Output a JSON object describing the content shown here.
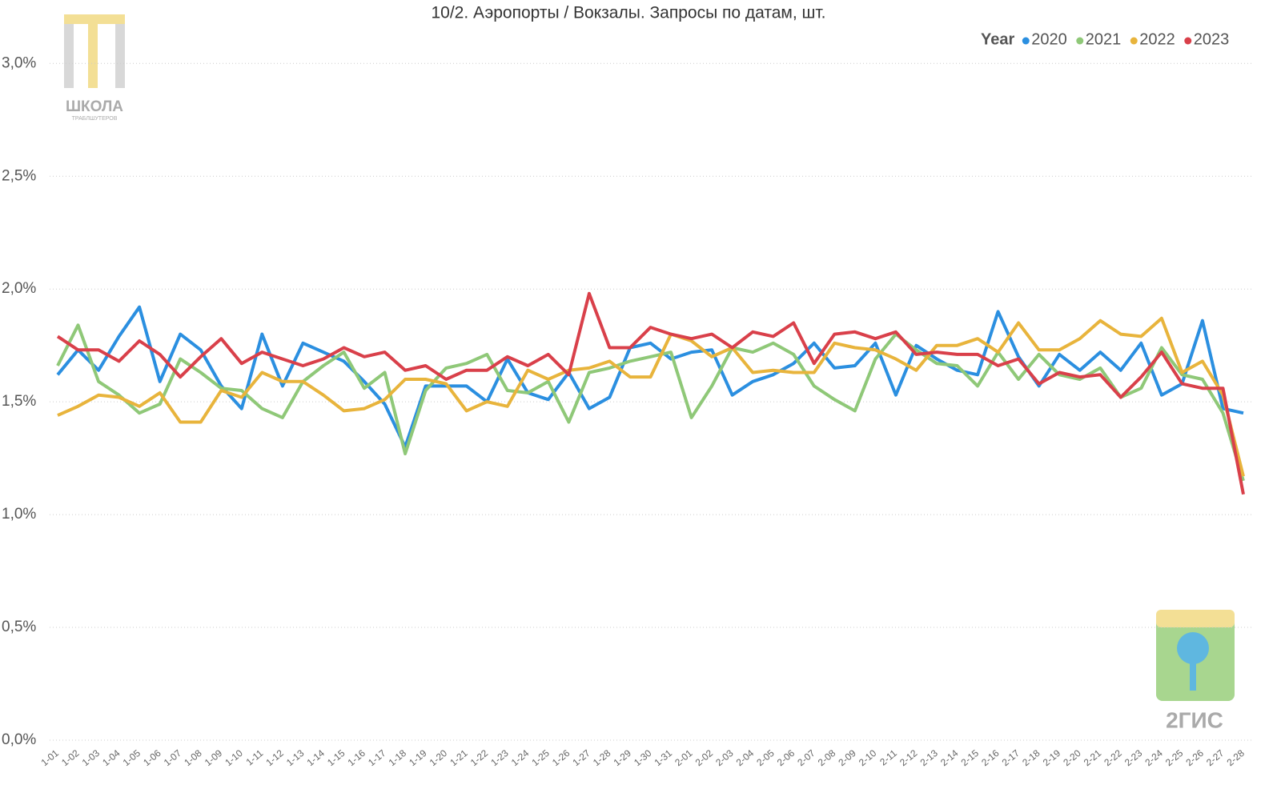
{
  "chart_data": {
    "type": "line",
    "title": "10/2. Аэропорты / Вокзалы. Запросы по датам, шт.",
    "legend_title": "Year",
    "logos": {
      "school": "ШКОЛА",
      "school_sub": "ТРАБЛШУТЕРОВ",
      "brand": "2ГИС"
    },
    "categories": [
      "1-01",
      "1-02",
      "1-03",
      "1-04",
      "1-05",
      "1-06",
      "1-07",
      "1-08",
      "1-09",
      "1-10",
      "1-11",
      "1-12",
      "1-13",
      "1-14",
      "1-15",
      "1-16",
      "1-17",
      "1-18",
      "1-19",
      "1-20",
      "1-21",
      "1-22",
      "1-23",
      "1-24",
      "1-25",
      "1-26",
      "1-27",
      "1-28",
      "1-29",
      "1-30",
      "1-31",
      "2-01",
      "2-02",
      "2-03",
      "2-04",
      "2-05",
      "2-06",
      "2-07",
      "2-08",
      "2-09",
      "2-10",
      "2-11",
      "2-12",
      "2-13",
      "2-14",
      "2-15",
      "2-16",
      "2-17",
      "2-18",
      "2-19",
      "2-20",
      "2-21",
      "2-22",
      "2-23",
      "2-24",
      "2-25",
      "2-26",
      "2-27",
      "2-28"
    ],
    "series": [
      {
        "name": "2020",
        "color": "#2b8fe0",
        "values": [
          1.62,
          1.73,
          1.64,
          1.79,
          1.92,
          1.59,
          1.8,
          1.73,
          1.57,
          1.47,
          1.8,
          1.57,
          1.76,
          1.72,
          1.68,
          1.59,
          1.49,
          1.3,
          1.57,
          1.57,
          1.57,
          1.5,
          1.69,
          1.54,
          1.51,
          1.63,
          1.47,
          1.52,
          1.74,
          1.76,
          1.69,
          1.72,
          1.73,
          1.53,
          1.59,
          1.62,
          1.67,
          1.76,
          1.65,
          1.66,
          1.76,
          1.53,
          1.75,
          1.69,
          1.64,
          1.62,
          1.9,
          1.7,
          1.57,
          1.71,
          1.64,
          1.72,
          1.64,
          1.76,
          1.53,
          1.58,
          1.86,
          1.47,
          1.45
        ]
      },
      {
        "name": "2021",
        "color": "#8fc878",
        "values": [
          1.66,
          1.84,
          1.59,
          1.53,
          1.45,
          1.49,
          1.69,
          1.63,
          1.56,
          1.55,
          1.47,
          1.43,
          1.59,
          1.66,
          1.72,
          1.56,
          1.63,
          1.27,
          1.55,
          1.65,
          1.67,
          1.71,
          1.55,
          1.54,
          1.59,
          1.41,
          1.63,
          1.65,
          1.68,
          1.7,
          1.72,
          1.43,
          1.57,
          1.74,
          1.72,
          1.76,
          1.71,
          1.57,
          1.51,
          1.46,
          1.69,
          1.8,
          1.73,
          1.67,
          1.66,
          1.57,
          1.72,
          1.6,
          1.71,
          1.62,
          1.6,
          1.65,
          1.52,
          1.56,
          1.74,
          1.62,
          1.6,
          1.45,
          1.15
        ]
      },
      {
        "name": "2022",
        "color": "#e8b43c",
        "values": [
          1.44,
          1.48,
          1.53,
          1.52,
          1.48,
          1.54,
          1.41,
          1.41,
          1.55,
          1.52,
          1.63,
          1.59,
          1.59,
          1.53,
          1.46,
          1.47,
          1.51,
          1.6,
          1.6,
          1.58,
          1.46,
          1.5,
          1.48,
          1.64,
          1.6,
          1.64,
          1.65,
          1.68,
          1.61,
          1.61,
          1.8,
          1.77,
          1.7,
          1.74,
          1.63,
          1.64,
          1.63,
          1.63,
          1.76,
          1.74,
          1.73,
          1.69,
          1.64,
          1.75,
          1.75,
          1.78,
          1.72,
          1.85,
          1.73,
          1.73,
          1.78,
          1.86,
          1.8,
          1.79,
          1.87,
          1.63,
          1.68,
          1.53,
          1.17
        ]
      },
      {
        "name": "2023",
        "color": "#d9404a",
        "values": [
          1.79,
          1.73,
          1.73,
          1.68,
          1.77,
          1.71,
          1.61,
          1.7,
          1.78,
          1.67,
          1.72,
          1.69,
          1.66,
          1.69,
          1.74,
          1.7,
          1.72,
          1.64,
          1.66,
          1.6,
          1.64,
          1.64,
          1.7,
          1.66,
          1.71,
          1.62,
          1.98,
          1.74,
          1.74,
          1.83,
          1.8,
          1.78,
          1.8,
          1.74,
          1.81,
          1.79,
          1.85,
          1.67,
          1.8,
          1.81,
          1.78,
          1.81,
          1.71,
          1.72,
          1.71,
          1.71,
          1.66,
          1.69,
          1.58,
          1.63,
          1.61,
          1.62,
          1.52,
          1.61,
          1.72,
          1.58,
          1.56,
          1.56,
          1.09
        ]
      }
    ],
    "ylim": [
      0,
      3.15
    ],
    "yticks": [
      {
        "value": 0,
        "label": "0,0%"
      },
      {
        "value": 0.5,
        "label": "0,5%"
      },
      {
        "value": 1,
        "label": "1,0%"
      },
      {
        "value": 1.5,
        "label": "1,5%"
      },
      {
        "value": 2,
        "label": "2,0%"
      },
      {
        "value": 2.5,
        "label": "2,5%"
      },
      {
        "value": 3,
        "label": "3,0%"
      }
    ],
    "grid": true,
    "legend": "top-right"
  }
}
